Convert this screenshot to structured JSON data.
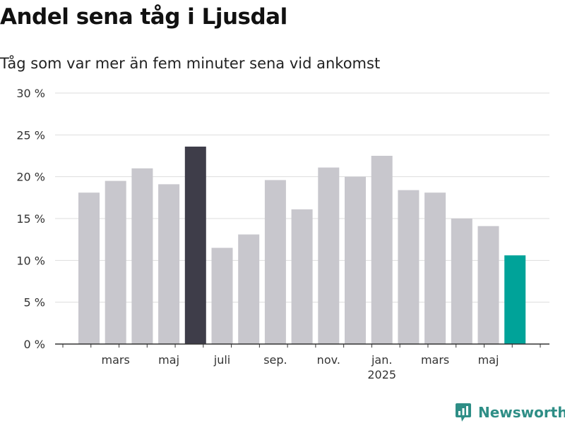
{
  "title": "Andel sena tåg i Ljusdal",
  "subtitle": "Tåg som var mer än fem minuter sena vid ankomst",
  "logo_text": "Newsworthy",
  "colors": {
    "bar_default": "#c8c7cd",
    "bar_highlight_dark": "#3e3d49",
    "bar_highlight_accent": "#00a399",
    "grid": "#dddddd",
    "axis": "#333333",
    "brand": "#2e8e86"
  },
  "chart_data": {
    "type": "bar",
    "title": "Andel sena tåg i Ljusdal",
    "subtitle": "Tåg som var mer än fem minuter sena vid ankomst",
    "x": [
      "2024-02",
      "2024-03",
      "2024-04",
      "2024-05",
      "2024-06",
      "2024-07",
      "2024-08",
      "2024-09",
      "2024-10",
      "2024-11",
      "2024-12",
      "2025-01",
      "2025-02",
      "2025-03",
      "2025-04",
      "2025-05",
      "2025-06"
    ],
    "values": [
      18.1,
      19.5,
      21.0,
      19.1,
      23.6,
      11.5,
      13.1,
      19.6,
      16.1,
      21.1,
      20.0,
      22.5,
      18.4,
      18.1,
      15.0,
      14.1,
      10.6
    ],
    "highlight": {
      "4": "dark",
      "16": "accent"
    },
    "x_ticks": [
      {
        "index": 1,
        "label": "mars",
        "sublabel": ""
      },
      {
        "index": 3,
        "label": "maj",
        "sublabel": ""
      },
      {
        "index": 5,
        "label": "juli",
        "sublabel": ""
      },
      {
        "index": 7,
        "label": "sep.",
        "sublabel": ""
      },
      {
        "index": 9,
        "label": "nov.",
        "sublabel": ""
      },
      {
        "index": 11,
        "label": "jan.",
        "sublabel": "2025"
      },
      {
        "index": 13,
        "label": "mars",
        "sublabel": ""
      },
      {
        "index": 15,
        "label": "maj",
        "sublabel": ""
      }
    ],
    "y_ticks": [
      0,
      5,
      10,
      15,
      20,
      25,
      30
    ],
    "y_tick_suffix": " %",
    "ylim": [
      0,
      30
    ],
    "grid": true,
    "xlabel": "",
    "ylabel": ""
  }
}
